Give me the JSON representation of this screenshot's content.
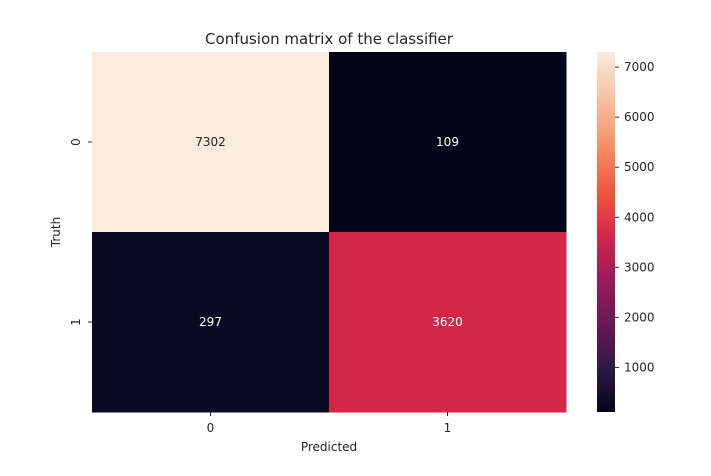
{
  "chart_data": {
    "type": "heatmap",
    "title": "Confusion matrix of the classifier",
    "xlabel": "Predicted",
    "ylabel": "Truth",
    "x_categories": [
      "0",
      "1"
    ],
    "y_categories": [
      "0",
      "1"
    ],
    "values": [
      [
        7302,
        109
      ],
      [
        297,
        3620
      ]
    ],
    "colorbar": {
      "min": 109,
      "max": 7302,
      "ticks": [
        1000,
        2000,
        3000,
        4000,
        5000,
        6000,
        7000
      ],
      "tick_labels": [
        "1000",
        "2000",
        "3000",
        "4000",
        "5000",
        "6000",
        "7000"
      ]
    },
    "colormap": "rocket",
    "colors": {
      "low": "#0e0a23",
      "high": "#fbe7d9",
      "low_text": "#ffffff",
      "high_text": "#262626"
    },
    "grid": false,
    "annotations": true
  }
}
